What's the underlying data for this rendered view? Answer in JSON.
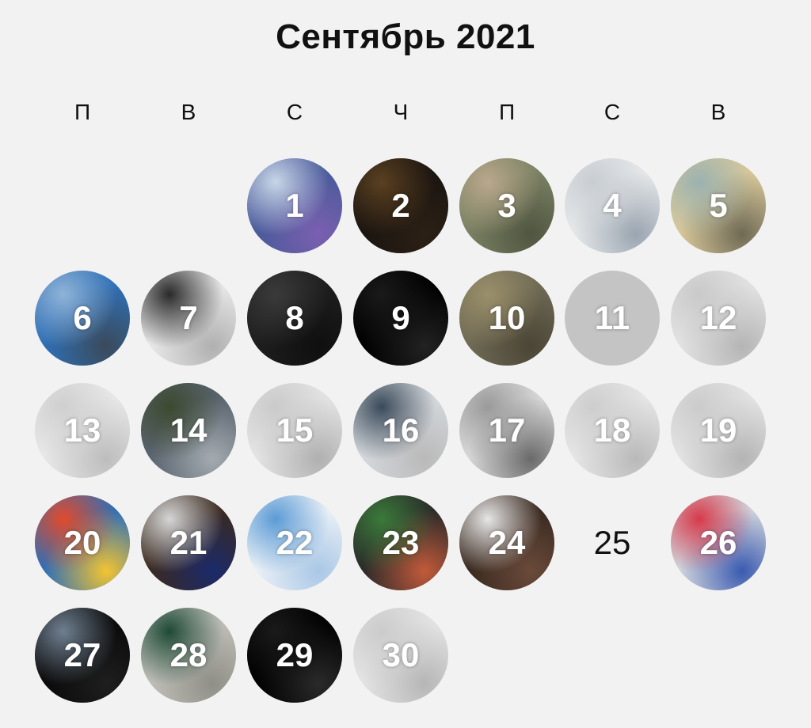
{
  "title": "Сентябрь 2021",
  "weekdays": [
    "П",
    "В",
    "С",
    "Ч",
    "П",
    "С",
    "В"
  ],
  "days": [
    {
      "n": "1",
      "kind": "photo",
      "icon": "screenshot-thumbnail-icon",
      "colors": [
        "#4a5a9a",
        "#c8d6e8",
        "#7b5fb0"
      ]
    },
    {
      "n": "2",
      "kind": "photo",
      "icon": "church-night-photo-icon",
      "colors": [
        "#1a1410",
        "#5a4020",
        "#2b2015"
      ]
    },
    {
      "n": "3",
      "kind": "photo",
      "icon": "people-collage-photo-icon",
      "colors": [
        "#7a8062",
        "#b9a88c",
        "#4f5540"
      ]
    },
    {
      "n": "4",
      "kind": "photo",
      "icon": "tweet-screenshot-icon",
      "colors": [
        "#e6e8ea",
        "#c8cdd2",
        "#9aa5b0"
      ]
    },
    {
      "n": "5",
      "kind": "photo",
      "icon": "comic-strip-icon",
      "colors": [
        "#d8c89a",
        "#9bb2b0",
        "#6f6a55"
      ]
    },
    {
      "n": "6",
      "kind": "photo",
      "icon": "bus-photo-icon",
      "colors": [
        "#2f6fb5",
        "#8fb3d8",
        "#3a4a5a"
      ]
    },
    {
      "n": "7",
      "kind": "photo",
      "icon": "gpu-boxes-photo-icon",
      "colors": [
        "#e8e8e8",
        "#2a2a2a",
        "#b0b0b0"
      ]
    },
    {
      "n": "8",
      "kind": "photo",
      "icon": "earbuds-photo-icon",
      "colors": [
        "#1e1e1e",
        "#3a3a3a",
        "#0f0f0f"
      ]
    },
    {
      "n": "9",
      "kind": "photo",
      "icon": "alarm-screen-icon",
      "colors": [
        "#000000",
        "#1a1a1a",
        "#222222"
      ]
    },
    {
      "n": "10",
      "kind": "photo",
      "icon": "puddle-photo-icon",
      "colors": [
        "#6f6a55",
        "#9a8f6a",
        "#4a4535"
      ]
    },
    {
      "n": "11",
      "kind": "empty",
      "icon": "no-image-icon",
      "colors": [
        "#c4c4c4"
      ]
    },
    {
      "n": "12",
      "kind": "photo",
      "icon": "text-screenshot-icon",
      "colors": [
        "#e2e2e2",
        "#c9c9c9",
        "#b5b5b5"
      ]
    },
    {
      "n": "13",
      "kind": "photo",
      "icon": "tweet-screenshot-icon",
      "colors": [
        "#e8e8e8",
        "#cfcfcf",
        "#bdbdbd"
      ]
    },
    {
      "n": "14",
      "kind": "photo",
      "icon": "suv-photo-icon",
      "colors": [
        "#5a6470",
        "#3c4a30",
        "#a4abb0"
      ]
    },
    {
      "n": "15",
      "kind": "photo",
      "icon": "text-screenshot-icon",
      "colors": [
        "#e4e4e4",
        "#cacaca",
        "#b0b0b0"
      ]
    },
    {
      "n": "16",
      "kind": "photo",
      "icon": "news-screenshot-icon",
      "colors": [
        "#d4d8dc",
        "#3a4a5a",
        "#b9b9b9"
      ]
    },
    {
      "n": "17",
      "kind": "photo",
      "icon": "document-photo-icon",
      "colors": [
        "#d8d8d8",
        "#9a9a9a",
        "#6a6a6a"
      ]
    },
    {
      "n": "18",
      "kind": "photo",
      "icon": "text-screenshot-icon",
      "colors": [
        "#e6e6e6",
        "#cdcdcd",
        "#b9b9b9"
      ]
    },
    {
      "n": "19",
      "kind": "photo",
      "icon": "text-screenshot-icon",
      "colors": [
        "#e3e3e3",
        "#cbcbcb",
        "#b4b4b4"
      ]
    },
    {
      "n": "20",
      "kind": "photo",
      "icon": "russia-map-logo-icon",
      "colors": [
        "#2d6fb8",
        "#e24a2a",
        "#f2c431"
      ]
    },
    {
      "n": "21",
      "kind": "photo",
      "icon": "laptop-screen-photo-icon",
      "colors": [
        "#3a2a20",
        "#d6d6d6",
        "#1b2a6a"
      ]
    },
    {
      "n": "22",
      "kind": "photo",
      "icon": "activity-chart-screenshot-icon",
      "colors": [
        "#eaf0f6",
        "#5b9bd5",
        "#a9c7e6"
      ]
    },
    {
      "n": "23",
      "kind": "photo",
      "icon": "phone-in-hand-photo-icon",
      "colors": [
        "#2a2a2a",
        "#3a7a3a",
        "#c25a3a"
      ]
    },
    {
      "n": "24",
      "kind": "photo",
      "icon": "tablet-photo-icon",
      "colors": [
        "#3a2a20",
        "#e6e6e6",
        "#6a4a3a"
      ]
    },
    {
      "n": "25",
      "kind": "plain",
      "icon": "",
      "colors": []
    },
    {
      "n": "26",
      "kind": "photo",
      "icon": "apple-event-photo-icon",
      "colors": [
        "#d0d4dc",
        "#d63a4a",
        "#3a5ab0"
      ]
    },
    {
      "n": "27",
      "kind": "photo",
      "icon": "laptop-stand-photo-icon",
      "colors": [
        "#0a0a0a",
        "#6f7f90",
        "#1e1e1e"
      ]
    },
    {
      "n": "28",
      "kind": "photo",
      "icon": "iphone-case-photo-icon",
      "colors": [
        "#bfbfb8",
        "#1e4a35",
        "#8f8f88"
      ]
    },
    {
      "n": "29",
      "kind": "photo",
      "icon": "dark-chat-screenshot-icon",
      "colors": [
        "#000000",
        "#1a1a1a",
        "#2a2a2a"
      ]
    },
    {
      "n": "30",
      "kind": "photo",
      "icon": "text-screenshot-icon",
      "colors": [
        "#e4e4e4",
        "#cbcbcb",
        "#b6b6b6"
      ]
    }
  ]
}
